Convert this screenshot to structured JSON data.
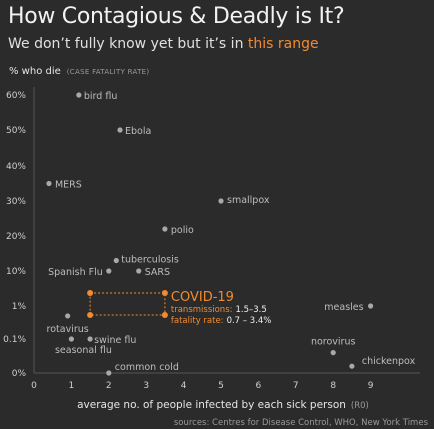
{
  "header": {
    "title": "How Contagious & Deadly is It?",
    "subtitle_prefix": "We don’t fully know yet but it’s in ",
    "subtitle_highlight": "this range"
  },
  "colors": {
    "background": "#2b2b2b",
    "point": "#a8a8a8",
    "accent": "#f28b30",
    "grid": "#444444"
  },
  "chart_data": {
    "type": "scatter",
    "title": "How Contagious & Deadly is It?",
    "subtitle": "We don’t fully know yet but it’s in this range",
    "ylabel": "% who die",
    "ylabel_note": "(CASE FATALITY RATE)",
    "xlabel": "average no. of people infected by each sick person",
    "xlabel_note": "(R0)",
    "xlim": [
      0,
      10
    ],
    "x_ticks": [
      "0",
      "1",
      "2",
      "3",
      "4",
      "5",
      "6",
      "7",
      "8",
      "9"
    ],
    "y_scale": "custom (linear 10–60%, compressed below 10%)",
    "y_ticks": [
      "0%",
      "0.1%",
      "1%",
      "10%",
      "20%",
      "30%",
      "40%",
      "50%",
      "60%"
    ],
    "grid": false,
    "points": [
      {
        "name": "bird flu",
        "x": 1.2,
        "y": 60
      },
      {
        "name": "Ebola",
        "x": 2.3,
        "y": 50
      },
      {
        "name": "MERS",
        "x": 0.4,
        "y": 35
      },
      {
        "name": "smallpox",
        "x": 5.0,
        "y": 30
      },
      {
        "name": "polio",
        "x": 3.5,
        "y": 22
      },
      {
        "name": "tuberculosis",
        "x": 2.2,
        "y": 13
      },
      {
        "name": "Spanish Flu",
        "x": 2.0,
        "y": 10
      },
      {
        "name": "SARS",
        "x": 2.8,
        "y": 10
      },
      {
        "name": "measles",
        "x": 9.0,
        "y": 1
      },
      {
        "name": "rotavirus",
        "x": 0.9,
        "y": 0.5
      },
      {
        "name": "swine flu",
        "x": 1.5,
        "y": 0.1
      },
      {
        "name": "seasonal flu",
        "x": 1.0,
        "y": 0.1
      },
      {
        "name": "norovirus",
        "x": 8.0,
        "y": 0.06
      },
      {
        "name": "chickenpox",
        "x": 8.5,
        "y": 0.02
      },
      {
        "name": "common cold",
        "x": 2.0,
        "y": 0.0
      }
    ],
    "covid_range": {
      "label": "COVID-19",
      "transmissions_label": "transmissions:",
      "transmissions_value": "1.5–3.5",
      "fatality_label": "fatality rate:",
      "fatality_value": "0.7 – 3.4%",
      "x_min": 1.5,
      "x_max": 3.5,
      "y_min": 0.7,
      "y_max": 3.4
    },
    "source": "sources: Centres for Disease Control, WHO, New York Times"
  }
}
